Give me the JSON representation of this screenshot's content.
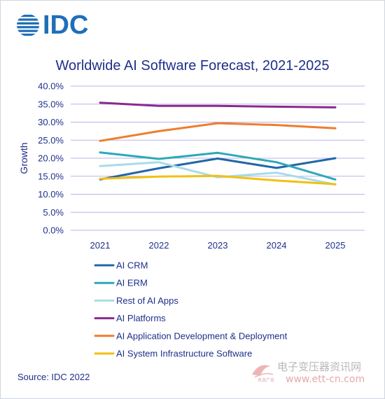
{
  "brand": {
    "logo_text": "IDC",
    "logo_color": "#1f6fb8"
  },
  "source": "Source: IDC 2022",
  "watermark": {
    "cn_text": "电子变压器资讯网",
    "url_text": "www.ett-cn.com",
    "small_text": "名品广告"
  },
  "chart_data": {
    "type": "line",
    "title": "Worldwide AI Software Forecast, 2021-2025",
    "ylabel": "Growth",
    "xlabel": "",
    "categories": [
      "2021",
      "2022",
      "2023",
      "2024",
      "2025"
    ],
    "ylim": [
      0,
      40
    ],
    "yticks": [
      0,
      5,
      10,
      15,
      20,
      25,
      30,
      35,
      40
    ],
    "ytick_labels": [
      "0.0%",
      "5.0%",
      "10.0%",
      "15.0%",
      "20.0%",
      "25.0%",
      "30.0%",
      "35.0%",
      "40.0%"
    ],
    "grid": "horizontal",
    "legend_position": "bottom",
    "series": [
      {
        "name": "AI CRM",
        "color": "#2266a8",
        "values": [
          14.1,
          17.2,
          19.9,
          17.3,
          20.0
        ]
      },
      {
        "name": "AI ERM",
        "color": "#2ea8b8",
        "values": [
          21.6,
          19.8,
          21.5,
          18.9,
          14.1
        ]
      },
      {
        "name": "Rest of AI Apps",
        "color": "#a8dce8",
        "values": [
          17.8,
          18.9,
          14.7,
          16.0,
          12.7
        ]
      },
      {
        "name": "AI Platforms",
        "color": "#8a2a8c",
        "values": [
          35.4,
          34.5,
          34.5,
          34.3,
          34.1
        ]
      },
      {
        "name": "AI Application Development & Deployment",
        "color": "#ee7d2e",
        "values": [
          24.8,
          27.5,
          29.7,
          29.2,
          28.3
        ]
      },
      {
        "name": "AI System Infrastructure Software",
        "color": "#f2c010",
        "values": [
          14.3,
          14.9,
          15.1,
          13.8,
          12.8
        ]
      }
    ]
  }
}
